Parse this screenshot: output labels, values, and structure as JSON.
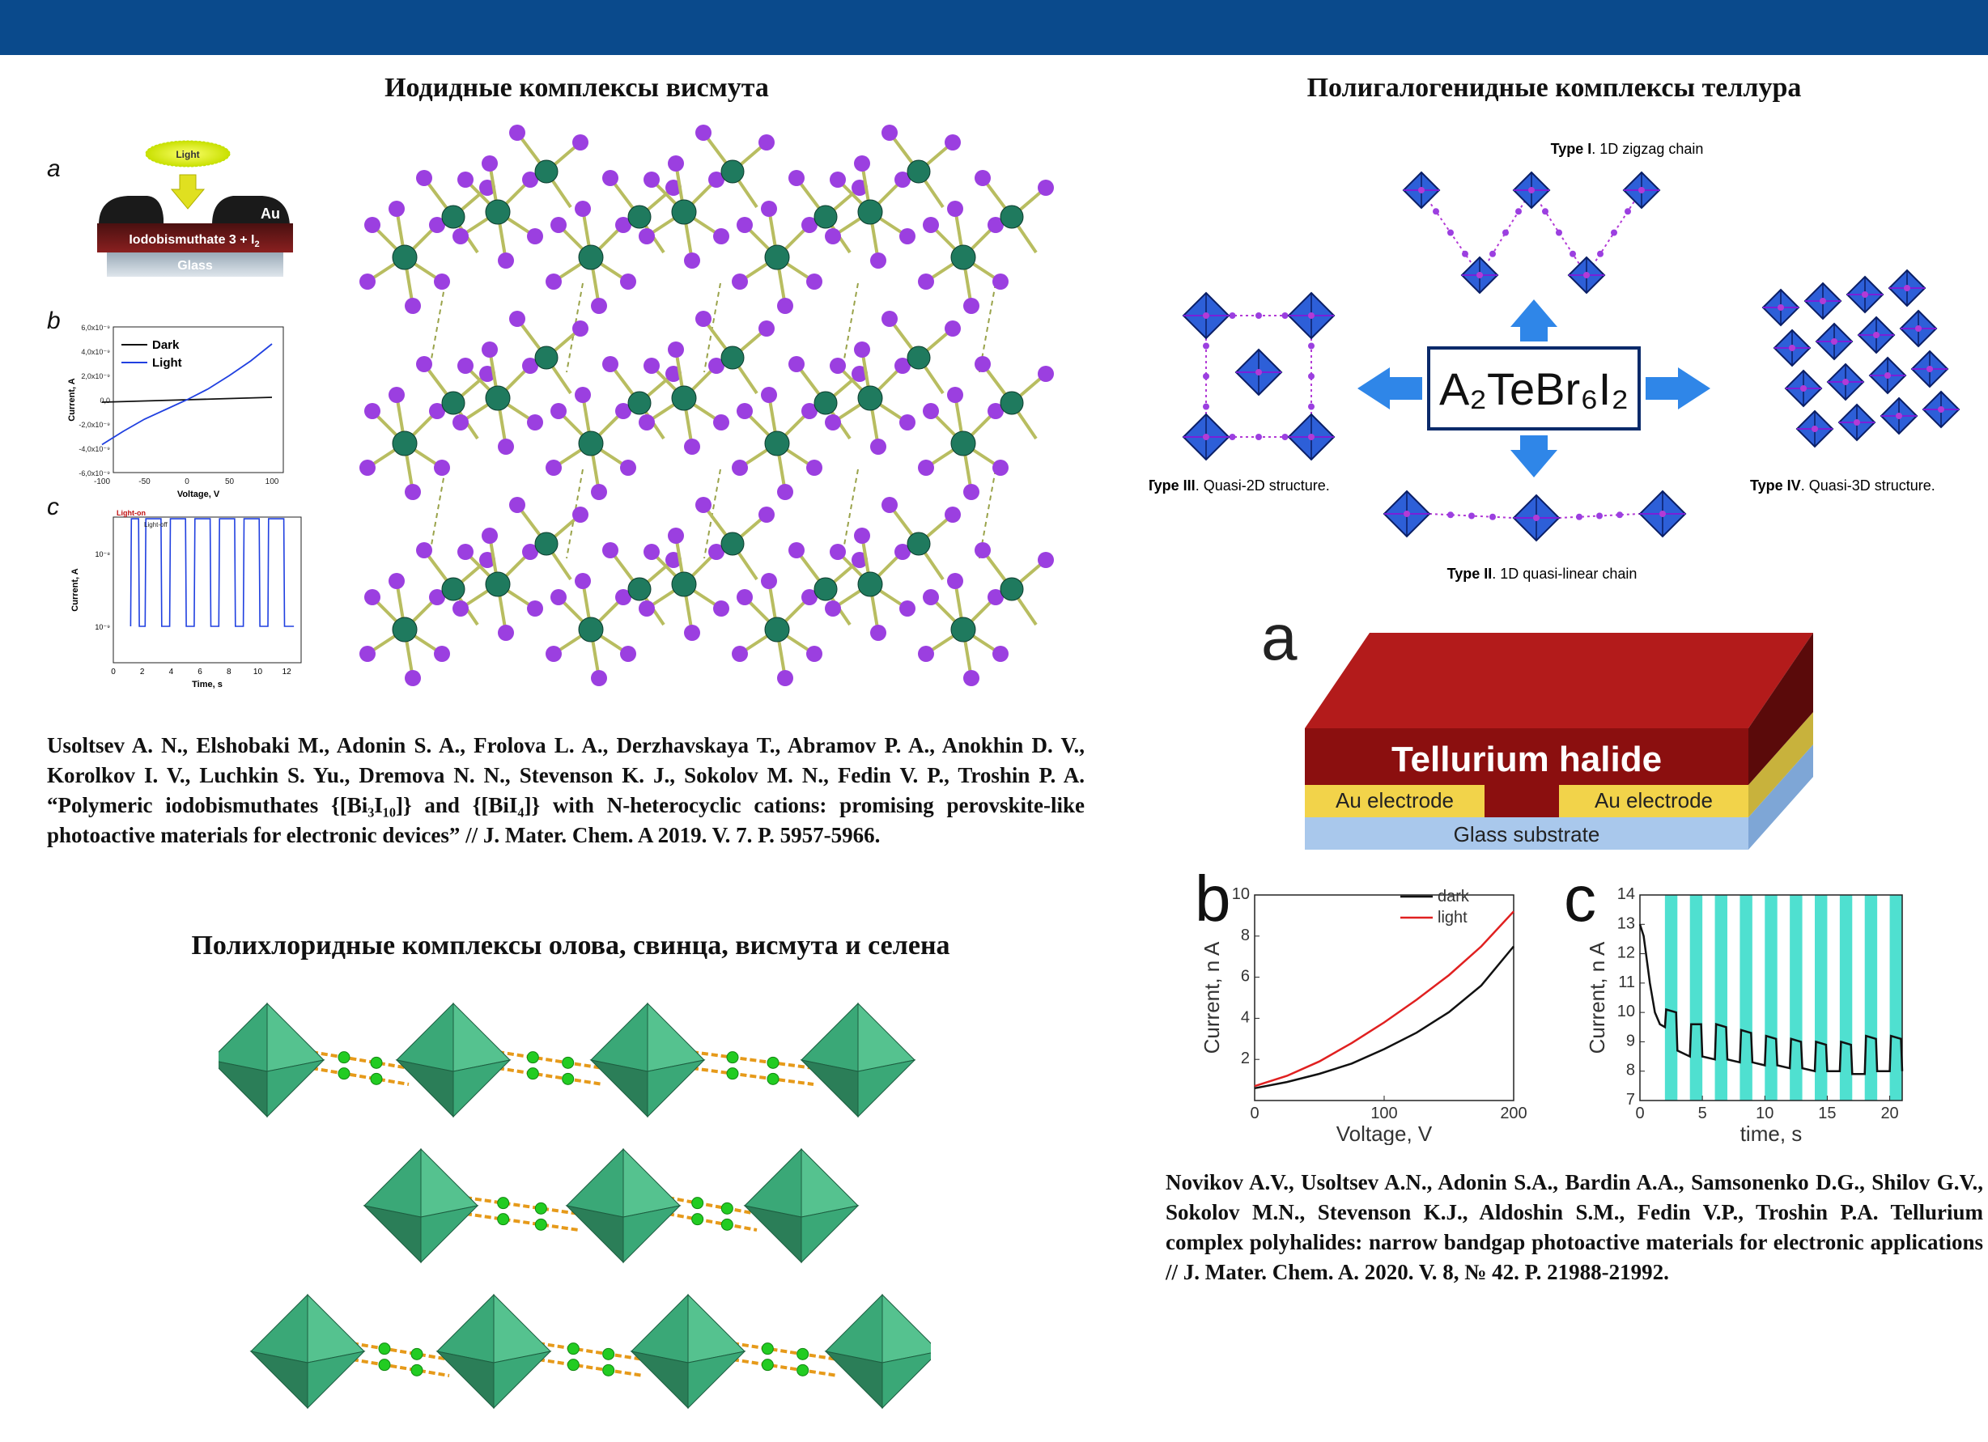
{
  "sections": {
    "bismuth": {
      "title": "Иодидные комплексы висмута",
      "panel_a": {
        "letter": "a",
        "light_label": "Light",
        "electrode_label": "Au",
        "layer_label": "Iodobismuthate 3 + I",
        "layer_sub": "2",
        "substrate_label": "Glass"
      },
      "panel_b": {
        "letter": "b",
        "ylabel": "Current, A",
        "xlabel": "Voltage, V",
        "yticks": [
          "6,0x10⁻⁹",
          "4,0x10⁻⁹",
          "2,0x10⁻⁹",
          "0,0",
          "-2,0x10⁻⁹",
          "-4,0x10⁻⁹",
          "-6,0x10⁻⁹"
        ],
        "xticks": [
          "-100",
          "-50",
          "0",
          "50",
          "100"
        ],
        "legend": [
          "Dark",
          "Light"
        ]
      },
      "panel_c": {
        "letter": "c",
        "ylabel": "Current, A",
        "xlabel": "Time, s",
        "yticks": [
          "10⁻⁸",
          "10⁻⁹"
        ],
        "xticks": [
          "0",
          "2",
          "4",
          "6",
          "8",
          "10",
          "12"
        ],
        "light_on": "Light-on",
        "light_off": "Light-off"
      },
      "reference": "Usoltsev A. N., Elshobaki M., Adonin S. A., Frolova L. A., Derzhavskaya T., Abramov P. A., Anokhin D. V., Korolkov I. V., Luchkin S. Yu., Dremova N. N., Stevenson K. J., Sokolov M. N., Fedin V. P., Troshin P. A. “Polymeric iodobismuthates {[Bi₃I₁₀]} and {[BiI₄]} with N-heterocyclic cations: promising perovskite-like photoactive materials for electronic devices” // J. Mater. Chem. A 2019. V. 7. P. 5957-5966."
    },
    "polychloride": {
      "title": "Полихлоридные комплексы олова, свинца, висмута и селена"
    },
    "tellurium": {
      "title": "Полигалогенидные комплексы теллура",
      "formula": "A₂TeBr₆I₂",
      "types": {
        "type1_bold": "Type I",
        "type1_text": ". 1D zigzag chain",
        "type2_bold": "Type II",
        "type2_text": ". 1D quasi-linear chain",
        "type3_bold": "Type III",
        "type3_text": ". Quasi-2D structure.",
        "type4_bold": "Type IV",
        "type4_text": ". Quasi-3D structure."
      },
      "device": {
        "letter": "a",
        "layer": "Tellurium halide",
        "electrode_left": "Au electrode",
        "electrode_right": "Au electrode",
        "substrate": "Glass substrate"
      },
      "reference": "Novikov A.V., Usoltsev A.N., Adonin S.A., Bardin A.A., Samsonenko D.G., Shilov G.V., Sokolov M.N., Stevenson K.J., Aldoshin S.M., Fedin V.P., Troshin P.A. Tellurium complex polyhalides: narrow bandgap photoactive materials for electronic applications // J. Mater. Chem. A. 2020. V. 8, № 42. P. 21988-21992."
    }
  },
  "colors": {
    "topbar": "#0a4a8c",
    "dark_curve": "#111111",
    "light_curve": "#e02020",
    "cyan_bar": "#4fe0d0",
    "octahedron": "#3a9a6a",
    "bismuth_atom": "#1f7a5e",
    "iodine_atom": "#9b3fe0"
  },
  "chart_data": [
    {
      "type": "line",
      "title": "",
      "xlabel": "Voltage, V",
      "ylabel": "Current, n A",
      "xlim": [
        0,
        200
      ],
      "ylim": [
        0,
        10
      ],
      "xticks": [
        0,
        100,
        200
      ],
      "yticks": [
        2,
        4,
        6,
        8,
        10
      ],
      "panel_letter": "b",
      "legend": "top-right",
      "series": [
        {
          "name": "dark",
          "color": "#111111",
          "x": [
            0,
            25,
            50,
            75,
            100,
            125,
            150,
            175,
            200
          ],
          "y": [
            0.6,
            0.9,
            1.3,
            1.8,
            2.5,
            3.3,
            4.3,
            5.6,
            7.5
          ]
        },
        {
          "name": "light",
          "color": "#e02020",
          "x": [
            0,
            25,
            50,
            75,
            100,
            125,
            150,
            175,
            200
          ],
          "y": [
            0.7,
            1.2,
            1.9,
            2.8,
            3.8,
            4.9,
            6.1,
            7.5,
            9.2
          ]
        }
      ]
    },
    {
      "type": "line",
      "title": "",
      "xlabel": "time, s",
      "ylabel": "Current, n A",
      "xlim": [
        0,
        21
      ],
      "ylim": [
        7,
        14
      ],
      "xticks": [
        0,
        5,
        10,
        15,
        20
      ],
      "yticks": [
        7,
        8,
        9,
        10,
        11,
        12,
        13,
        14
      ],
      "panel_letter": "c",
      "light_on_intervals": [
        [
          2,
          3
        ],
        [
          4,
          5
        ],
        [
          6,
          7
        ],
        [
          8,
          9
        ],
        [
          10,
          11
        ],
        [
          12,
          13
        ],
        [
          14,
          15
        ],
        [
          16,
          17
        ],
        [
          18,
          19
        ],
        [
          20,
          21
        ]
      ],
      "series": [
        {
          "name": "",
          "color": "#111111",
          "x": [
            0,
            0.3,
            0.8,
            1.2,
            1.6,
            2,
            2.1,
            2.9,
            3,
            4,
            4.1,
            4.9,
            5,
            6,
            6.1,
            6.9,
            7,
            8,
            8.1,
            8.9,
            9,
            10,
            10.1,
            10.9,
            11,
            12,
            12.1,
            12.9,
            13,
            14,
            14.1,
            14.9,
            15,
            16,
            16.1,
            16.9,
            17,
            18,
            18.1,
            18.9,
            19,
            20,
            20.1,
            20.9,
            21
          ],
          "y": [
            13,
            12.6,
            11,
            10,
            9.6,
            9.5,
            10.1,
            10.0,
            8.7,
            8.5,
            9.6,
            9.6,
            8.5,
            8.4,
            9.6,
            9.5,
            8.4,
            8.3,
            9.4,
            9.3,
            8.3,
            8.2,
            9.2,
            9.1,
            8.2,
            8.1,
            9.1,
            9.0,
            8.1,
            8.0,
            9.0,
            8.9,
            8.0,
            8.0,
            9.0,
            8.9,
            7.9,
            7.9,
            9.2,
            9.1,
            8.0,
            8.0,
            9.2,
            9.1,
            8.0
          ]
        }
      ]
    },
    {
      "type": "line",
      "title": "",
      "xlabel": "Voltage, V",
      "ylabel": "Current, A",
      "xlim": [
        -100,
        100
      ],
      "ylim": [
        -6e-09,
        6e-09
      ],
      "panel_letter": "b",
      "legend": "top-left",
      "series": [
        {
          "name": "Dark",
          "color": "#111111",
          "x": [
            -100,
            -50,
            0,
            50,
            100
          ],
          "y": [
            -2e-10,
            -1e-10,
            0,
            1e-10,
            2e-10
          ]
        },
        {
          "name": "Light",
          "color": "#2040e0",
          "x": [
            -100,
            -75,
            -50,
            -25,
            0,
            25,
            50,
            75,
            100
          ],
          "y": [
            -3.7e-09,
            -2.6e-09,
            -1.6e-09,
            -8e-10,
            0,
            9e-10,
            2e-09,
            3.2e-09,
            4.6e-09
          ]
        }
      ]
    },
    {
      "type": "line",
      "title": "",
      "xlabel": "Time, s",
      "ylabel": "Current, A",
      "xlim": [
        0,
        13
      ],
      "panel_letter": "c",
      "y_scale": "log",
      "series": [
        {
          "name": "",
          "color": "#2040e0",
          "x": [
            1.2,
            1.25,
            1.75,
            1.8,
            2.2,
            2.25,
            3.3,
            3.35,
            3.9,
            3.95,
            5.0,
            5.05,
            5.6,
            5.65,
            6.7,
            6.75,
            7.3,
            7.35,
            8.4,
            8.45,
            9.0,
            9.05,
            10.1,
            10.15,
            10.7,
            10.75,
            11.8,
            11.85,
            12.5
          ],
          "y": [
            1e-09,
            3e-08,
            3e-08,
            1e-09,
            1e-09,
            3e-08,
            3e-08,
            1e-09,
            1e-09,
            3e-08,
            3e-08,
            1e-09,
            1e-09,
            3e-08,
            3e-08,
            1e-09,
            1e-09,
            3e-08,
            3e-08,
            1e-09,
            1e-09,
            3e-08,
            3e-08,
            1e-09,
            1e-09,
            3e-08,
            3e-08,
            1e-09,
            1e-09
          ]
        }
      ]
    }
  ]
}
